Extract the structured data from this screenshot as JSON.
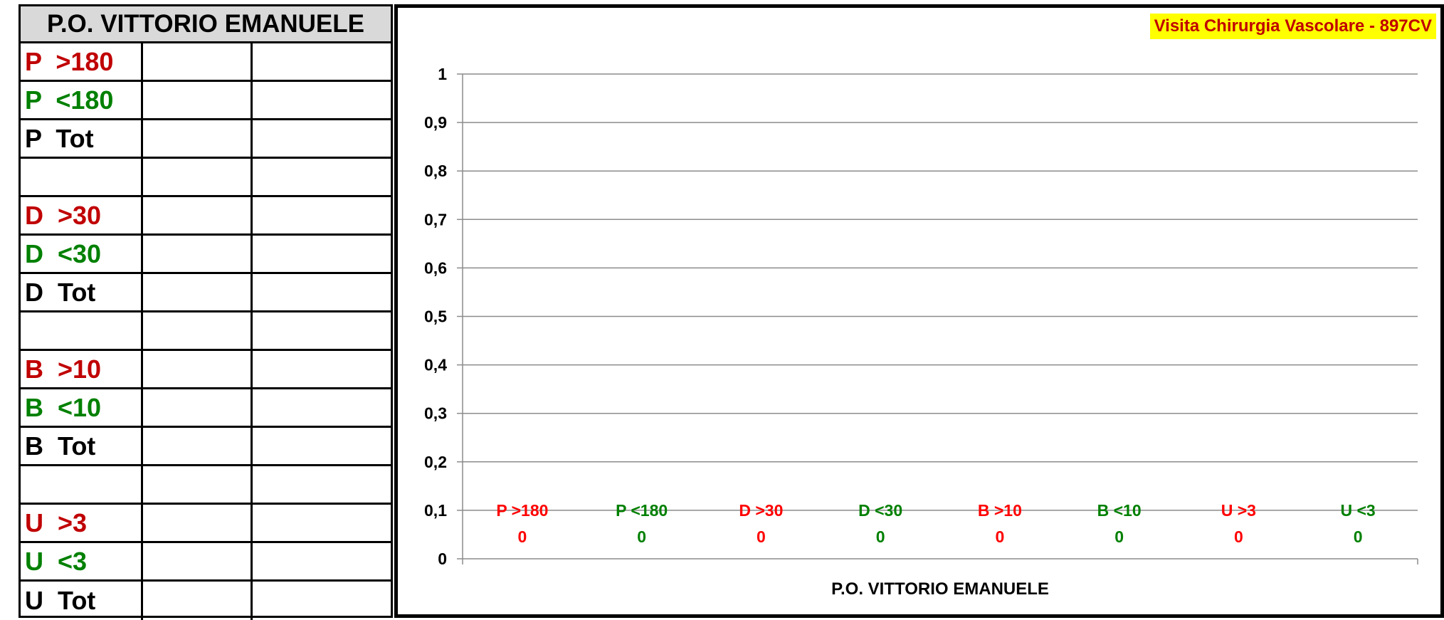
{
  "table": {
    "title": "P.O. VITTORIO EMANUELE",
    "rows": [
      {
        "label": "P  >180",
        "color": "#c00000"
      },
      {
        "label": "P  <180",
        "color": "#008000"
      },
      {
        "label": "P  Tot",
        "color": "#000000"
      },
      {
        "label": "",
        "color": "#000000"
      },
      {
        "label": "D  >30",
        "color": "#c00000"
      },
      {
        "label": "D  <30",
        "color": "#008000"
      },
      {
        "label": "D  Tot",
        "color": "#000000"
      },
      {
        "label": "",
        "color": "#000000"
      },
      {
        "label": "B  >10",
        "color": "#c00000"
      },
      {
        "label": "B  <10",
        "color": "#008000"
      },
      {
        "label": "B  Tot",
        "color": "#000000"
      },
      {
        "label": "",
        "color": "#000000"
      },
      {
        "label": "U  >3",
        "color": "#c00000"
      },
      {
        "label": "U  <3",
        "color": "#008000"
      },
      {
        "label": "U  Tot",
        "color": "#000000"
      }
    ]
  },
  "chart_data": {
    "type": "bar",
    "subtitle": "Visita Chirurgia Vascolare - 897CV",
    "xlabel": "P.O. VITTORIO EMANUELE",
    "ylabel": "",
    "ylim": [
      0,
      1
    ],
    "yticks": [
      "0",
      "0,1",
      "0,2",
      "0,3",
      "0,4",
      "0,5",
      "0,6",
      "0,7",
      "0,8",
      "0,9",
      "1"
    ],
    "grid": true,
    "categories": [
      "P  >180",
      "P  <180",
      "D  >30",
      "D  <30",
      "B  >10",
      "B  <10",
      "U  >3",
      "U  <3"
    ],
    "values": [
      0,
      0,
      0,
      0,
      0,
      0,
      0,
      0
    ],
    "category_colors": [
      "#ff0000",
      "#008000",
      "#ff0000",
      "#008000",
      "#ff0000",
      "#008000",
      "#ff0000",
      "#008000"
    ],
    "value_colors": [
      "#ff0000",
      "#008000",
      "#ff0000",
      "#008000",
      "#ff0000",
      "#008000",
      "#ff0000",
      "#008000"
    ]
  }
}
